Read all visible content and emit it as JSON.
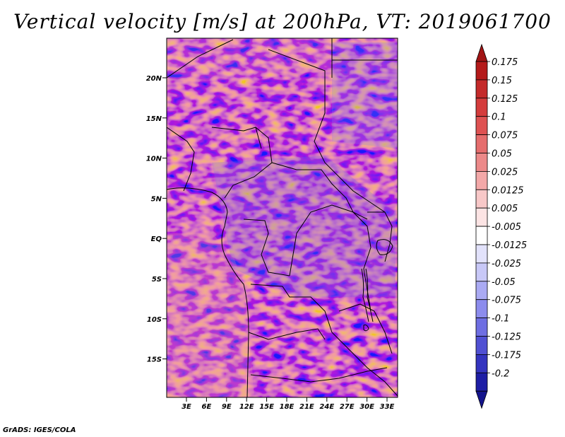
{
  "title": "Vertical velocity [m/s] at 200hPa, VT: 2019061700",
  "credit": "GrADS: IGES/COLA",
  "map": {
    "variable": "Vertical velocity",
    "units": "m/s",
    "level": "200hPa",
    "valid_time": "2019061700",
    "lat_labels": [
      "20N",
      "15N",
      "10N",
      "5N",
      "EQ",
      "5S",
      "10S",
      "15S"
    ],
    "lon_labels": [
      "3E",
      "6E",
      "9E",
      "12E",
      "15E",
      "18E",
      "21E",
      "24E",
      "27E",
      "30E",
      "33E"
    ]
  },
  "colorbar": {
    "levels": [
      {
        "label": "0.175",
        "color": "#b41a1a"
      },
      {
        "label": "0.15",
        "color": "#c42a2a"
      },
      {
        "label": "0.125",
        "color": "#d43c3c"
      },
      {
        "label": "0.1",
        "color": "#de5252"
      },
      {
        "label": "0.075",
        "color": "#e56d6d"
      },
      {
        "label": "0.05",
        "color": "#ec8989"
      },
      {
        "label": "0.025",
        "color": "#f3a8a8"
      },
      {
        "label": "0.0125",
        "color": "#f8c8c8"
      },
      {
        "label": "0.005",
        "color": "#fce4e4"
      },
      {
        "label": "-0.005",
        "color": "#ffffff"
      },
      {
        "label": "-0.0125",
        "color": "#e2e2fb"
      },
      {
        "label": "-0.025",
        "color": "#c8c8f7"
      },
      {
        "label": "-0.05",
        "color": "#aaaaf3"
      },
      {
        "label": "-0.075",
        "color": "#8c8ced"
      },
      {
        "label": "-0.1",
        "color": "#6e6ee2"
      },
      {
        "label": "-0.125",
        "color": "#5050d3"
      },
      {
        "label": "-0.175",
        "color": "#3434bf"
      },
      {
        "label": "-0.2",
        "color": "#1e1ea5"
      }
    ],
    "top_color": "#a11414",
    "bottom_color": "#14148c"
  }
}
